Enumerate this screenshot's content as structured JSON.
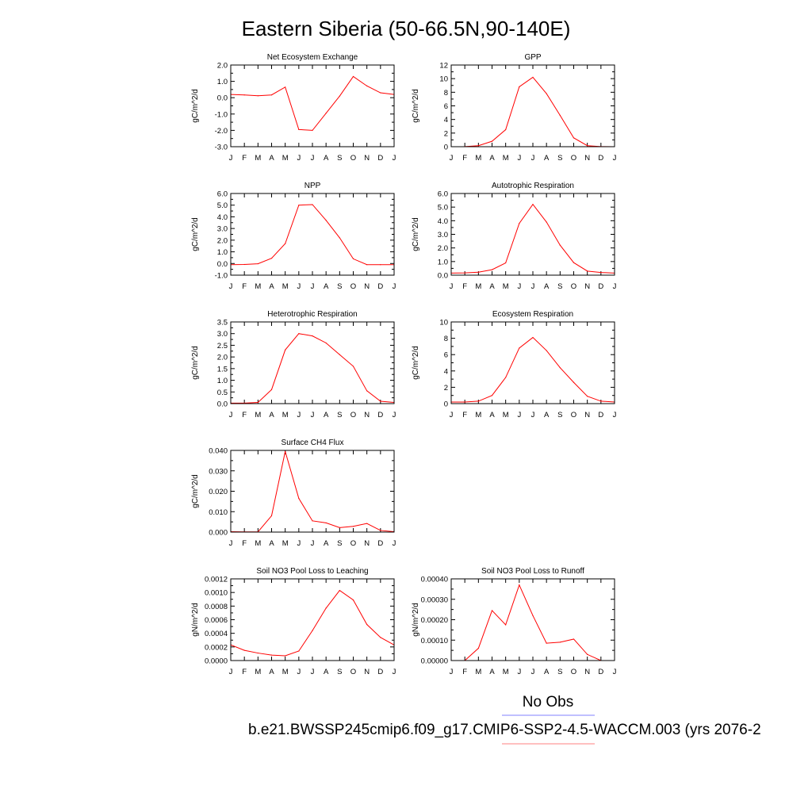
{
  "title": "Eastern Siberia (50-66.5N,90-140E)",
  "months": [
    "J",
    "F",
    "M",
    "A",
    "M",
    "J",
    "J",
    "A",
    "S",
    "O",
    "N",
    "D",
    "J"
  ],
  "legend": {
    "label": "No Obs",
    "case_name": "b.e21.BWSSP245cmip6.f09_g17.CMIP6-SSP2-4.5-WACCM.003 (yrs 2076-2",
    "obs_color": "#8080ff",
    "model_color": "#ff8080"
  },
  "series_color": "#ff0000",
  "chart_data": [
    {
      "type": "line",
      "title": "Net Ecosystem Exchange",
      "ylabel": "gC/m^2/d",
      "ylim": [
        -3.0,
        2.0
      ],
      "yticks": [
        -3.0,
        -2.0,
        -1.0,
        0.0,
        1.0,
        2.0
      ],
      "yticklabels": [
        "-3.0",
        "-2.0",
        "-1.0",
        "0.0",
        "1.0",
        "2.0"
      ],
      "values": [
        0.2,
        0.17,
        0.12,
        0.17,
        0.65,
        -1.95,
        -2.0,
        -0.95,
        0.1,
        1.3,
        0.72,
        0.3,
        0.2
      ]
    },
    {
      "type": "line",
      "title": "GPP",
      "ylabel": "gC/m^2/d",
      "ylim": [
        0,
        12
      ],
      "yticks": [
        0,
        2,
        4,
        6,
        8,
        10,
        12
      ],
      "yticklabels": [
        "0",
        "2",
        "4",
        "6",
        "8",
        "10",
        "12"
      ],
      "values": [
        0.0,
        0.02,
        0.15,
        0.8,
        2.5,
        8.8,
        10.2,
        7.8,
        4.6,
        1.3,
        0.15,
        0.02,
        0.0
      ]
    },
    {
      "type": "line",
      "title": "NPP",
      "ylabel": "gC/m^2/d",
      "ylim": [
        -1.0,
        6.0
      ],
      "yticks": [
        -1.0,
        0.0,
        1.0,
        2.0,
        3.0,
        4.0,
        5.0,
        6.0
      ],
      "yticklabels": [
        "-1.0",
        "0.0",
        "1.0",
        "2.0",
        "3.0",
        "4.0",
        "5.0",
        "6.0"
      ],
      "values": [
        -0.1,
        -0.08,
        -0.02,
        0.45,
        1.7,
        5.0,
        5.05,
        3.7,
        2.2,
        0.4,
        -0.1,
        -0.1,
        -0.1
      ]
    },
    {
      "type": "line",
      "title": "Autotrophic Respiration",
      "ylabel": "gC/m^2/d",
      "ylim": [
        0.0,
        6.0
      ],
      "yticks": [
        0.0,
        1.0,
        2.0,
        3.0,
        4.0,
        5.0,
        6.0
      ],
      "yticklabels": [
        "0.0",
        "1.0",
        "2.0",
        "3.0",
        "4.0",
        "5.0",
        "6.0"
      ],
      "values": [
        0.15,
        0.17,
        0.22,
        0.4,
        0.9,
        3.8,
        5.2,
        3.9,
        2.2,
        0.92,
        0.3,
        0.2,
        0.15
      ]
    },
    {
      "type": "line",
      "title": "Heterotrophic Respiration",
      "ylabel": "gC/m^2/d",
      "ylim": [
        0.0,
        3.5
      ],
      "yticks": [
        0.0,
        0.5,
        1.0,
        1.5,
        2.0,
        2.5,
        3.0,
        3.5
      ],
      "yticklabels": [
        "0.0",
        "0.5",
        "1.0",
        "1.5",
        "2.0",
        "2.5",
        "3.0",
        "3.5"
      ],
      "values": [
        0.02,
        0.02,
        0.05,
        0.6,
        2.3,
        3.0,
        2.9,
        2.6,
        2.1,
        1.6,
        0.55,
        0.1,
        0.05
      ]
    },
    {
      "type": "line",
      "title": "Ecosystem Respiration",
      "ylabel": "gC/m^2/d",
      "ylim": [
        0,
        10
      ],
      "yticks": [
        0,
        2,
        4,
        6,
        8,
        10
      ],
      "yticklabels": [
        "0",
        "2",
        "4",
        "6",
        "8",
        "10"
      ],
      "values": [
        0.2,
        0.2,
        0.3,
        1.0,
        3.2,
        6.8,
        8.1,
        6.5,
        4.4,
        2.6,
        0.9,
        0.3,
        0.2
      ]
    },
    {
      "type": "line",
      "title": "Surface CH4 Flux",
      "ylabel": "gC/m^2/d",
      "ylim": [
        0.0,
        0.04
      ],
      "yticks": [
        0.0,
        0.01,
        0.02,
        0.03,
        0.04
      ],
      "yticklabels": [
        "0.000",
        "0.010",
        "0.020",
        "0.030",
        "0.040"
      ],
      "values": [
        0.0002,
        0.0001,
        0.0001,
        0.008,
        0.0395,
        0.0165,
        0.0055,
        0.0045,
        0.0022,
        0.0028,
        0.0042,
        0.0008,
        0.0002
      ]
    },
    {
      "type": "line",
      "title": "Soil NO3 Pool Loss to Leaching",
      "ylabel": "gN/m^2/d",
      "ylim": [
        0.0,
        0.0012
      ],
      "yticks": [
        0.0,
        0.0002,
        0.0004,
        0.0006,
        0.0008,
        0.001,
        0.0012
      ],
      "yticklabels": [
        "0.0000",
        "0.0002",
        "0.0004",
        "0.0006",
        "0.0008",
        "0.0010",
        "0.0012"
      ],
      "values": [
        0.00023,
        0.00015,
        0.00011,
        8e-05,
        7e-05,
        0.00014,
        0.00044,
        0.00077,
        0.00103,
        0.00089,
        0.00053,
        0.00034,
        0.00023
      ]
    },
    {
      "type": "line",
      "title": "Soil NO3 Pool Loss to Runoff",
      "ylabel": "gN/m^2/d",
      "ylim": [
        0.0,
        0.0004
      ],
      "yticks": [
        0.0,
        0.0001,
        0.0002,
        0.0003,
        0.0004
      ],
      "yticklabels": [
        "0.00000",
        "0.00010",
        "0.00020",
        "0.00030",
        "0.00040"
      ],
      "values": [
        -2e-05,
        0.0,
        6e-05,
        0.000245,
        0.000175,
        0.00037,
        0.00022,
        8.5e-05,
        9e-05,
        0.000105,
        3e-05,
        0.0,
        -1e-05
      ]
    }
  ]
}
